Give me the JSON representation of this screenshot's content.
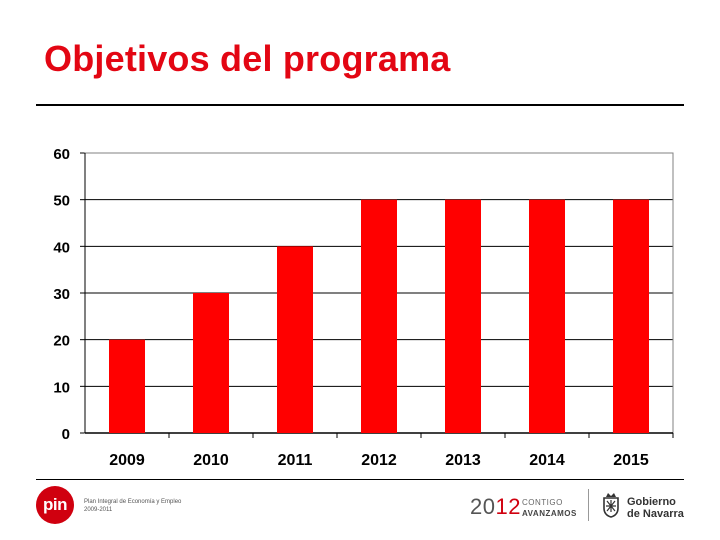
{
  "page": {
    "title": "Objetivos del programa"
  },
  "footer": {
    "pin_logo_text": "pin",
    "pin_tagline_line1": "Plan Integral de Economía y Empleo",
    "pin_tagline_line2": "2009-2011",
    "year_prefix": "20",
    "year_suffix": "12",
    "slogan_line1": "CONTIGO",
    "slogan_line2": "AVANZAMOS",
    "gov_line1": "Gobierno",
    "gov_line2": "de Navarra"
  },
  "colors": {
    "title": "#e30613",
    "bar": "#ff0000",
    "grid": "#000000",
    "logo_red": "#d0000f"
  },
  "chart_data": {
    "type": "bar",
    "title": "",
    "xlabel": "",
    "ylabel": "",
    "categories": [
      "2009",
      "2010",
      "2011",
      "2012",
      "2013",
      "2014",
      "2015"
    ],
    "values": [
      20,
      30,
      40,
      50,
      50,
      50,
      50
    ],
    "ylim": [
      0,
      60
    ],
    "yticks": [
      0,
      10,
      20,
      30,
      40,
      50,
      60
    ],
    "grid": true,
    "legend": "none"
  }
}
